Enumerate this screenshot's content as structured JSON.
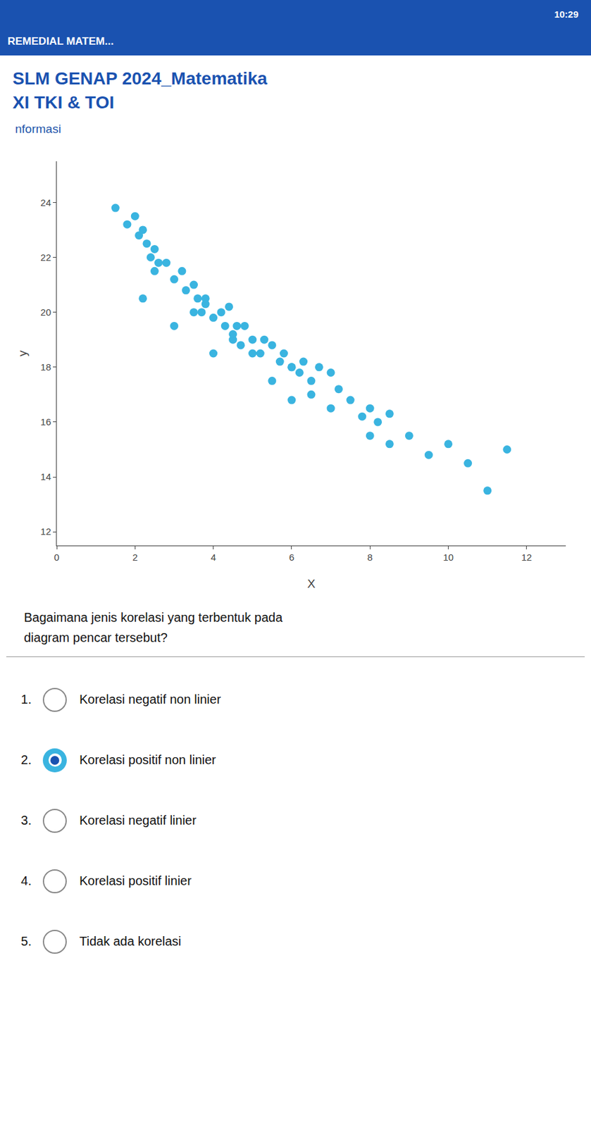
{
  "chart_data": {
    "type": "scatter",
    "title": "SLM GENAP 2024_Matematika",
    "subtitle": "XI TKI & TOI",
    "x": [
      1.5,
      1.8,
      2.0,
      2.1,
      2.2,
      2.3,
      2.4,
      2.5,
      2.6,
      2.2,
      2.5,
      2.8,
      3.0,
      3.2,
      3.3,
      3.5,
      3.6,
      3.7,
      3.8,
      3.0,
      3.5,
      3.8,
      4.0,
      4.2,
      4.3,
      4.4,
      4.5,
      4.6,
      4.7,
      4.0,
      4.5,
      4.8,
      5.0,
      5.2,
      5.3,
      5.5,
      5.7,
      5.8,
      6.0,
      5.0,
      5.5,
      6.0,
      6.2,
      6.3,
      6.5,
      6.7,
      7.0,
      7.2,
      6.0,
      6.5,
      7.0,
      7.5,
      7.8,
      8.0,
      8.2,
      8.5,
      8.0,
      8.5,
      9.0,
      9.5,
      10.0,
      10.5,
      11.0,
      11.5
    ],
    "values": [
      23.8,
      23.2,
      23.5,
      22.8,
      23.0,
      22.5,
      22.0,
      22.3,
      21.8,
      20.5,
      21.5,
      21.8,
      21.2,
      21.5,
      20.8,
      21.0,
      20.5,
      20.0,
      20.3,
      19.5,
      20.0,
      20.5,
      19.8,
      20.0,
      19.5,
      20.2,
      19.0,
      19.5,
      18.8,
      18.5,
      19.2,
      19.5,
      19.0,
      18.5,
      19.0,
      18.8,
      18.2,
      18.5,
      18.0,
      18.5,
      17.5,
      18.0,
      17.8,
      18.2,
      17.5,
      18.0,
      17.8,
      17.2,
      16.8,
      17.0,
      16.5,
      16.8,
      16.2,
      16.5,
      16.0,
      16.3,
      15.5,
      15.2,
      15.5,
      14.8,
      15.2,
      14.5,
      13.5,
      15.0
    ],
    "color": "#3ab4e0",
    "marker": "circle",
    "xlabel": "X",
    "ylabel": "y",
    "xlim": [
      0,
      13
    ],
    "ylim": [
      11.5,
      25.5
    ],
    "xticks": [
      0,
      2,
      4,
      6,
      8,
      10,
      12
    ],
    "yticks": [
      12,
      14,
      16,
      18,
      20,
      22,
      24
    ],
    "grid": false,
    "annotations": [
      {
        "text": "REMEDIAL MATEM..."
      },
      {
        "text": "10:29"
      },
      {
        "text": "nformasi"
      },
      {
        "text": "Bagaimana jenis korelasi yang terbentuk pada\ndiagram pencar tersebut?"
      },
      {
        "label": "1.",
        "text": "Korelasi negatif non linier",
        "selected": false
      },
      {
        "label": "2.",
        "text": "Korelasi positif non linier",
        "selected": true
      },
      {
        "label": "3.",
        "text": "Korelasi negatif linier",
        "selected": false
      },
      {
        "label": "4.",
        "text": "Korelasi positif linier",
        "selected": false
      },
      {
        "label": "5.",
        "text": "Tidak ada korelasi",
        "selected": false
      }
    ]
  }
}
